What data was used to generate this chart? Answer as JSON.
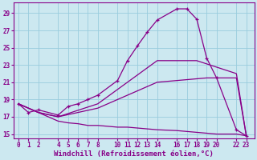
{
  "xlabel": "Windchill (Refroidissement éolien,°C)",
  "background_color": "#cce8f0",
  "grid_color": "#99ccdd",
  "line_color": "#880088",
  "xlim": [
    -0.5,
    23.8
  ],
  "ylim": [
    14.5,
    30.2
  ],
  "xticks": [
    0,
    1,
    2,
    4,
    5,
    6,
    7,
    8,
    10,
    11,
    12,
    13,
    14,
    16,
    17,
    18,
    19,
    20,
    22,
    23
  ],
  "yticks": [
    15,
    17,
    19,
    21,
    23,
    25,
    27,
    29
  ],
  "curve1_x": [
    0,
    1,
    2,
    4,
    5,
    6,
    7,
    8,
    10,
    11,
    12,
    13,
    14,
    16,
    17,
    18,
    19,
    20,
    22,
    23
  ],
  "curve1_y": [
    18.5,
    17.5,
    17.8,
    17.2,
    18.2,
    18.5,
    19.0,
    19.5,
    21.2,
    23.5,
    25.2,
    26.8,
    28.2,
    29.5,
    29.5,
    28.3,
    23.8,
    21.5,
    15.5,
    14.8
  ],
  "curve2_x": [
    0,
    2,
    4,
    8,
    14,
    18,
    22,
    23
  ],
  "curve2_y": [
    18.5,
    17.5,
    17.0,
    18.5,
    23.5,
    23.5,
    22.0,
    14.8
  ],
  "curve3_x": [
    0,
    2,
    4,
    8,
    14,
    19,
    22,
    23
  ],
  "curve3_y": [
    18.5,
    17.5,
    17.0,
    18.0,
    21.0,
    21.5,
    21.5,
    14.8
  ],
  "curve4_x": [
    0,
    4,
    5,
    6,
    7,
    8,
    10,
    11,
    12,
    13,
    14,
    16,
    17,
    18,
    19,
    20,
    22,
    23
  ],
  "curve4_y": [
    18.5,
    16.5,
    16.3,
    16.2,
    16.0,
    16.0,
    15.8,
    15.8,
    15.7,
    15.6,
    15.5,
    15.4,
    15.3,
    15.2,
    15.1,
    15.0,
    15.0,
    14.8
  ],
  "fontsize_label": 6.5,
  "fontsize_tick": 5.5
}
